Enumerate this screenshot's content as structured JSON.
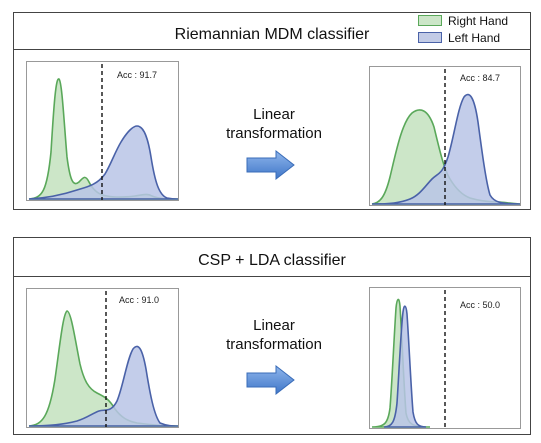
{
  "legend": {
    "items": [
      {
        "label": "Right Hand",
        "fill": "#cce6c8",
        "stroke": "#5aa85a"
      },
      {
        "label": "Left Hand",
        "fill": "#c2cbe6",
        "stroke": "#4a62a8"
      }
    ]
  },
  "panels": [
    {
      "title": "Riemannian MDM classifier",
      "transform_label": "Linear\ntransformation",
      "before": {
        "acc_label": "Acc : 91.7"
      },
      "after": {
        "acc_label": "Acc : 84.7"
      }
    },
    {
      "title": "CSP + LDA classifier",
      "transform_label": "Linear\ntransformation",
      "before": {
        "acc_label": "Acc : 91.0"
      },
      "after": {
        "acc_label": "Acc : 50.0"
      }
    }
  ],
  "colors": {
    "right_fill": "#cce6c8",
    "right_stroke": "#5aa85a",
    "left_fill": "#c2cbe6",
    "left_stroke": "#4a62a8",
    "arrow": "#5b8fd6"
  }
}
